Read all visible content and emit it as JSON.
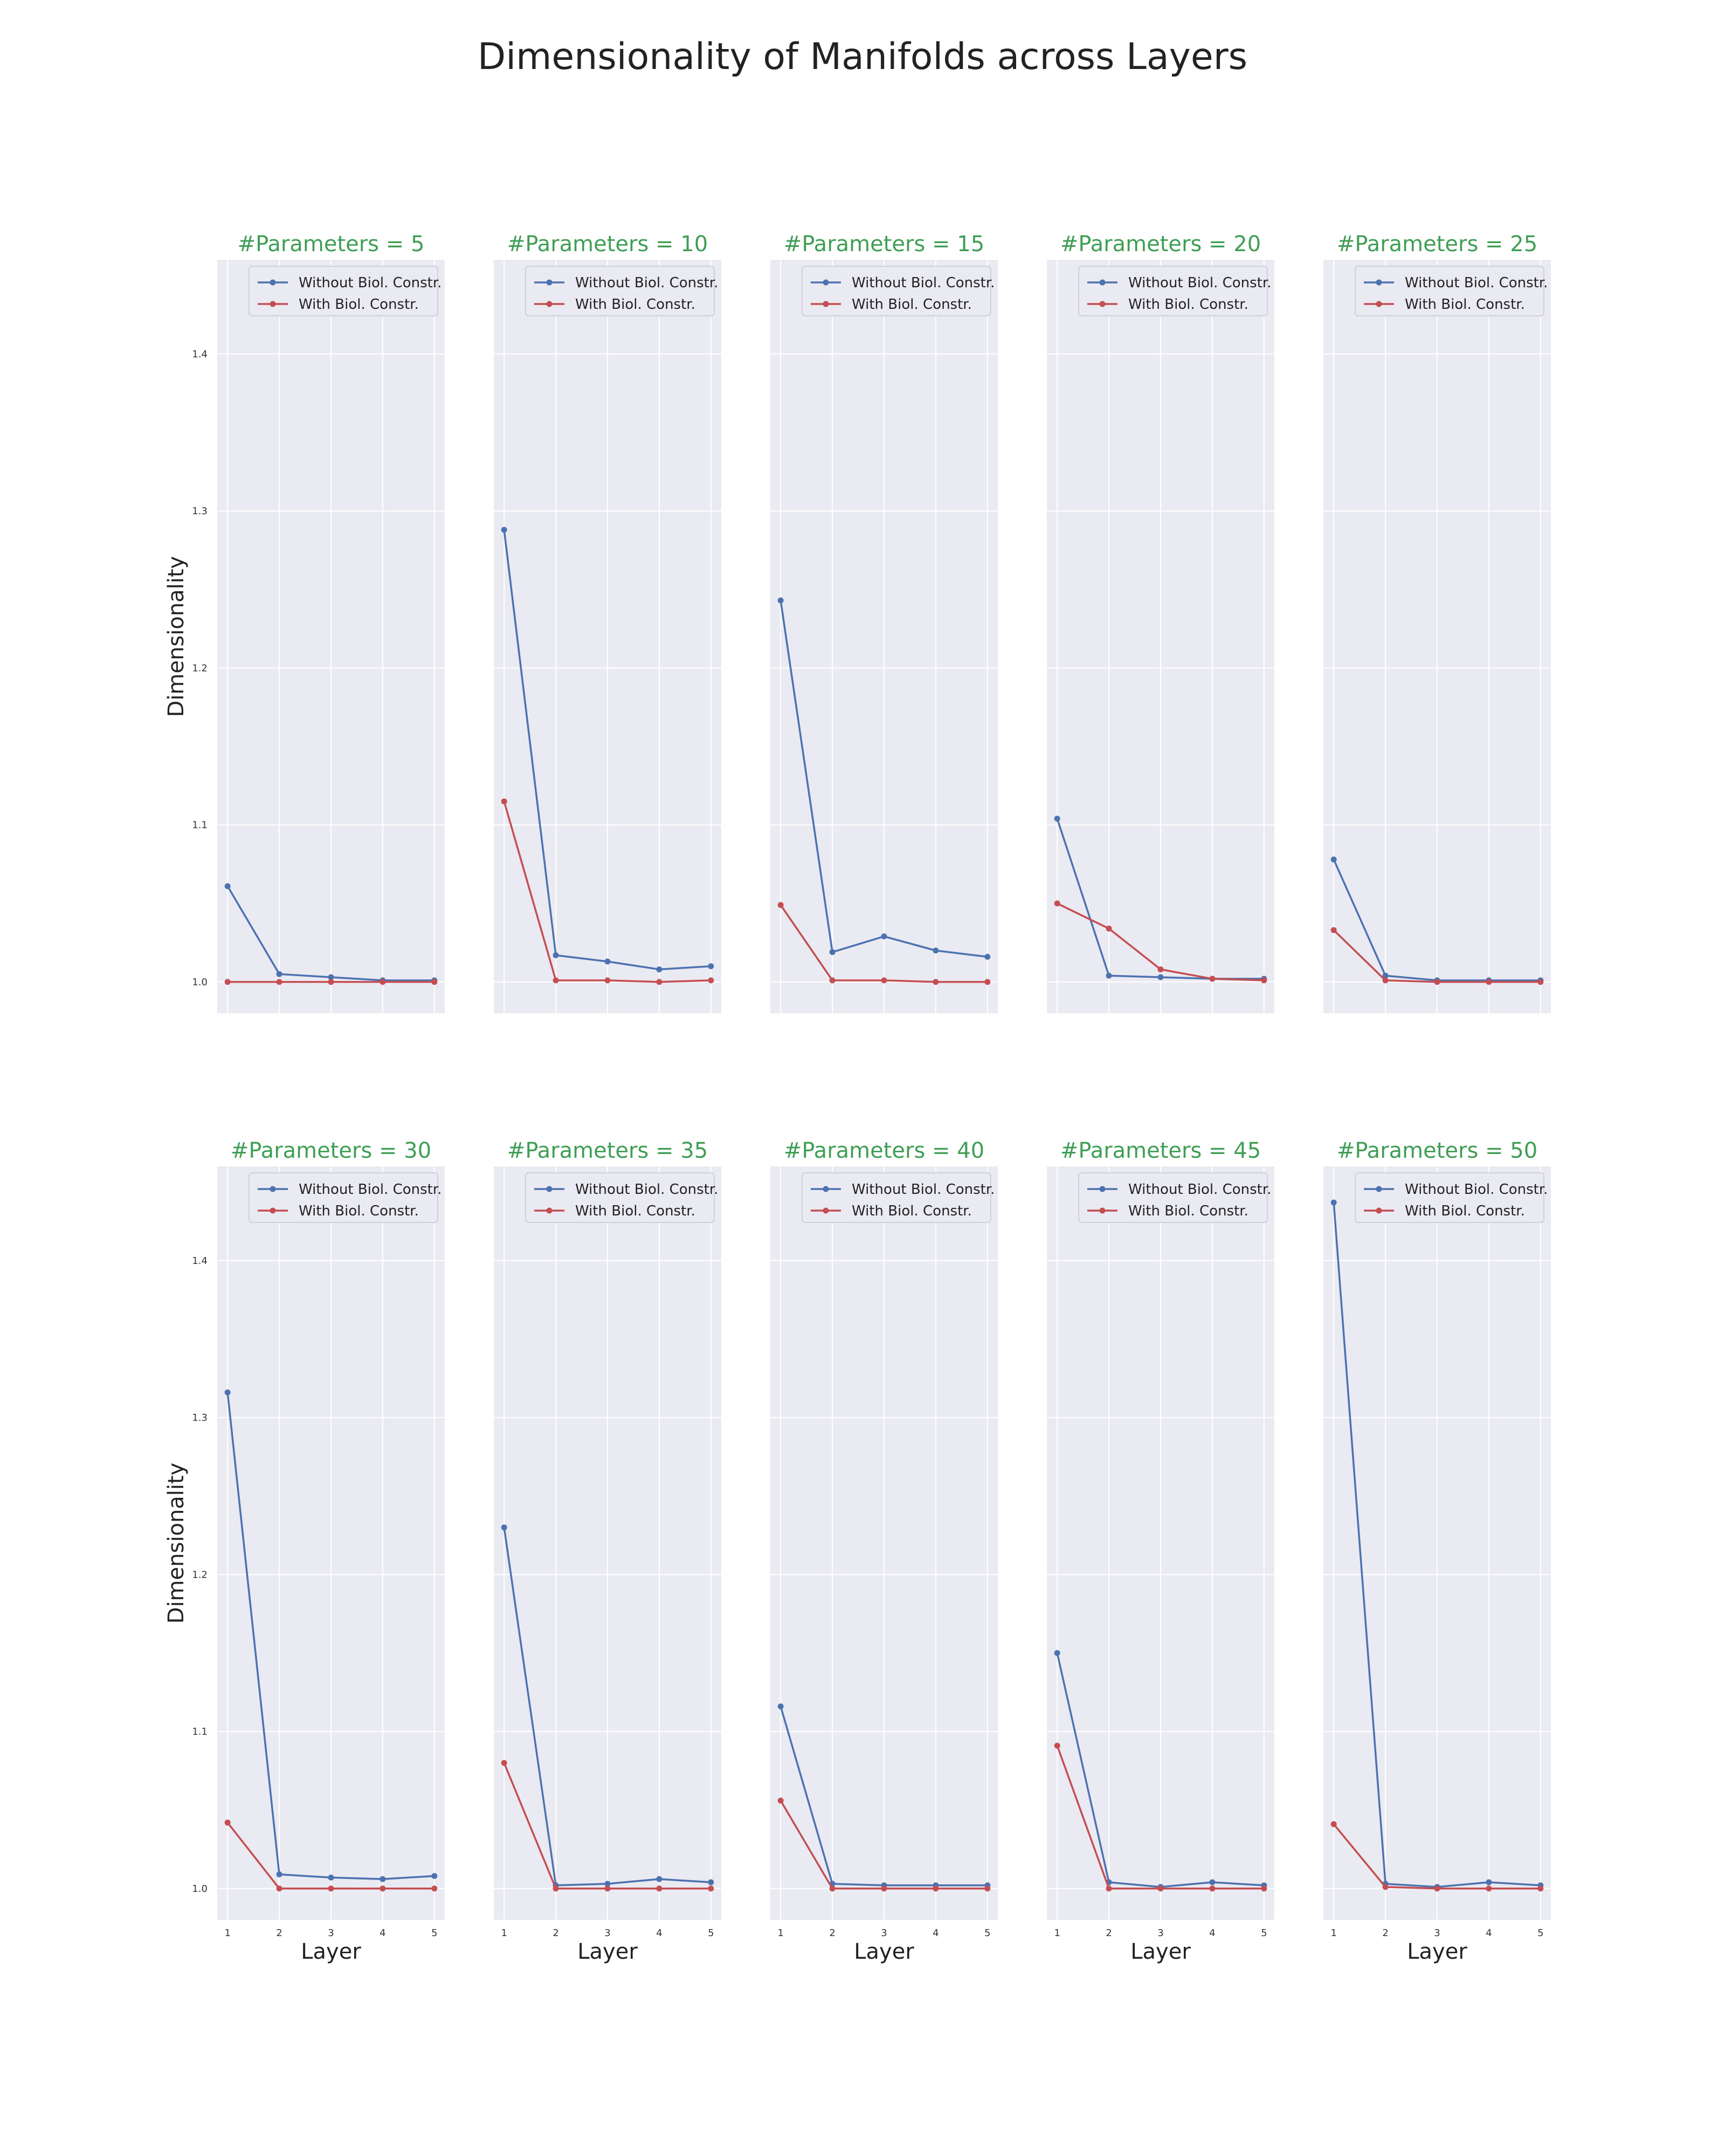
{
  "figure": {
    "title": "Dimensionality of Manifolds across Layers",
    "colors": {
      "without": "#4c72b0",
      "with": "#c44e52",
      "panel_title": "#3f9e55",
      "plot_background": "#eaeaf2",
      "grid": "#ffffff"
    }
  },
  "chart_data": [
    {
      "type": "line",
      "title": "#Parameters = 5",
      "xlabel": "",
      "ylabel": "Dimensionality",
      "x": [
        1,
        2,
        3,
        4,
        5
      ],
      "xlim": [
        0.8,
        5.2
      ],
      "ylim": [
        0.98,
        1.46
      ],
      "yticks": [
        1.0,
        1.1,
        1.2,
        1.3,
        1.4
      ],
      "grid": true,
      "legend": "top-right",
      "series": [
        {
          "name": "Without Biol. Constr.",
          "values": [
            1.061,
            1.005,
            1.003,
            1.001,
            1.001
          ]
        },
        {
          "name": "With Biol. Constr.",
          "values": [
            1.0,
            1.0,
            1.0,
            1.0,
            1.0
          ]
        }
      ]
    },
    {
      "type": "line",
      "title": "#Parameters = 10",
      "xlabel": "",
      "ylabel": "",
      "x": [
        1,
        2,
        3,
        4,
        5
      ],
      "xlim": [
        0.8,
        5.2
      ],
      "ylim": [
        0.98,
        1.46
      ],
      "yticks": [
        1.0,
        1.1,
        1.2,
        1.3,
        1.4
      ],
      "grid": true,
      "legend": "top-right",
      "series": [
        {
          "name": "Without Biol. Constr.",
          "values": [
            1.288,
            1.017,
            1.013,
            1.008,
            1.01
          ]
        },
        {
          "name": "With Biol. Constr.",
          "values": [
            1.115,
            1.001,
            1.001,
            1.0,
            1.001
          ]
        }
      ]
    },
    {
      "type": "line",
      "title": "#Parameters = 15",
      "xlabel": "",
      "ylabel": "",
      "x": [
        1,
        2,
        3,
        4,
        5
      ],
      "xlim": [
        0.8,
        5.2
      ],
      "ylim": [
        0.98,
        1.46
      ],
      "yticks": [
        1.0,
        1.1,
        1.2,
        1.3,
        1.4
      ],
      "grid": true,
      "legend": "top-right",
      "series": [
        {
          "name": "Without Biol. Constr.",
          "values": [
            1.243,
            1.019,
            1.029,
            1.02,
            1.016
          ]
        },
        {
          "name": "With Biol. Constr.",
          "values": [
            1.049,
            1.001,
            1.001,
            1.0,
            1.0
          ]
        }
      ]
    },
    {
      "type": "line",
      "title": "#Parameters = 20",
      "xlabel": "",
      "ylabel": "",
      "x": [
        1,
        2,
        3,
        4,
        5
      ],
      "xlim": [
        0.8,
        5.2
      ],
      "ylim": [
        0.98,
        1.46
      ],
      "yticks": [
        1.0,
        1.1,
        1.2,
        1.3,
        1.4
      ],
      "grid": true,
      "legend": "top-right",
      "series": [
        {
          "name": "Without Biol. Constr.",
          "values": [
            1.104,
            1.004,
            1.003,
            1.002,
            1.002
          ]
        },
        {
          "name": "With Biol. Constr.",
          "values": [
            1.05,
            1.034,
            1.008,
            1.002,
            1.001
          ]
        }
      ]
    },
    {
      "type": "line",
      "title": "#Parameters = 25",
      "xlabel": "",
      "ylabel": "",
      "x": [
        1,
        2,
        3,
        4,
        5
      ],
      "xlim": [
        0.8,
        5.2
      ],
      "ylim": [
        0.98,
        1.46
      ],
      "yticks": [
        1.0,
        1.1,
        1.2,
        1.3,
        1.4
      ],
      "grid": true,
      "legend": "top-right",
      "series": [
        {
          "name": "Without Biol. Constr.",
          "values": [
            1.078,
            1.004,
            1.001,
            1.001,
            1.001
          ]
        },
        {
          "name": "With Biol. Constr.",
          "values": [
            1.033,
            1.001,
            1.0,
            1.0,
            1.0
          ]
        }
      ]
    },
    {
      "type": "line",
      "title": "#Parameters = 30",
      "xlabel": "Layer",
      "ylabel": "Dimensionality",
      "x": [
        1,
        2,
        3,
        4,
        5
      ],
      "xlim": [
        0.8,
        5.2
      ],
      "ylim": [
        0.98,
        1.46
      ],
      "yticks": [
        1.0,
        1.1,
        1.2,
        1.3,
        1.4
      ],
      "grid": true,
      "legend": "top-right",
      "series": [
        {
          "name": "Without Biol. Constr.",
          "values": [
            1.316,
            1.009,
            1.007,
            1.006,
            1.008
          ]
        },
        {
          "name": "With Biol. Constr.",
          "values": [
            1.042,
            1.0,
            1.0,
            1.0,
            1.0
          ]
        }
      ]
    },
    {
      "type": "line",
      "title": "#Parameters = 35",
      "xlabel": "Layer",
      "ylabel": "",
      "x": [
        1,
        2,
        3,
        4,
        5
      ],
      "xlim": [
        0.8,
        5.2
      ],
      "ylim": [
        0.98,
        1.46
      ],
      "yticks": [
        1.0,
        1.1,
        1.2,
        1.3,
        1.4
      ],
      "grid": true,
      "legend": "top-right",
      "series": [
        {
          "name": "Without Biol. Constr.",
          "values": [
            1.23,
            1.002,
            1.003,
            1.006,
            1.004
          ]
        },
        {
          "name": "With Biol. Constr.",
          "values": [
            1.08,
            1.0,
            1.0,
            1.0,
            1.0
          ]
        }
      ]
    },
    {
      "type": "line",
      "title": "#Parameters = 40",
      "xlabel": "Layer",
      "ylabel": "",
      "x": [
        1,
        2,
        3,
        4,
        5
      ],
      "xlim": [
        0.8,
        5.2
      ],
      "ylim": [
        0.98,
        1.46
      ],
      "yticks": [
        1.0,
        1.1,
        1.2,
        1.3,
        1.4
      ],
      "grid": true,
      "legend": "top-right",
      "series": [
        {
          "name": "Without Biol. Constr.",
          "values": [
            1.116,
            1.003,
            1.002,
            1.002,
            1.002
          ]
        },
        {
          "name": "With Biol. Constr.",
          "values": [
            1.056,
            1.0,
            1.0,
            1.0,
            1.0
          ]
        }
      ]
    },
    {
      "type": "line",
      "title": "#Parameters = 45",
      "xlabel": "Layer",
      "ylabel": "",
      "x": [
        1,
        2,
        3,
        4,
        5
      ],
      "xlim": [
        0.8,
        5.2
      ],
      "ylim": [
        0.98,
        1.46
      ],
      "yticks": [
        1.0,
        1.1,
        1.2,
        1.3,
        1.4
      ],
      "grid": true,
      "legend": "top-right",
      "series": [
        {
          "name": "Without Biol. Constr.",
          "values": [
            1.15,
            1.004,
            1.001,
            1.004,
            1.002
          ]
        },
        {
          "name": "With Biol. Constr.",
          "values": [
            1.091,
            1.0,
            1.0,
            1.0,
            1.0
          ]
        }
      ]
    },
    {
      "type": "line",
      "title": "#Parameters = 50",
      "xlabel": "Layer",
      "ylabel": "",
      "x": [
        1,
        2,
        3,
        4,
        5
      ],
      "xlim": [
        0.8,
        5.2
      ],
      "ylim": [
        0.98,
        1.46
      ],
      "yticks": [
        1.0,
        1.1,
        1.2,
        1.3,
        1.4
      ],
      "grid": true,
      "legend": "top-right",
      "series": [
        {
          "name": "Without Biol. Constr.",
          "values": [
            1.437,
            1.003,
            1.001,
            1.004,
            1.002
          ]
        },
        {
          "name": "With Biol. Constr.",
          "values": [
            1.041,
            1.001,
            1.0,
            1.0,
            1.0
          ]
        }
      ]
    }
  ]
}
